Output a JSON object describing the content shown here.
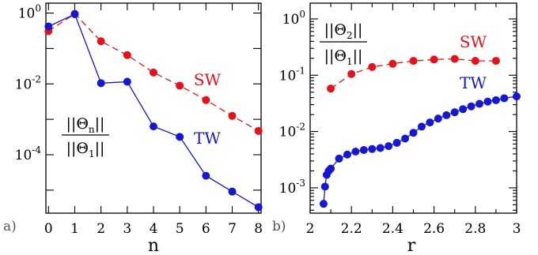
{
  "colors": {
    "sw": "#e8111a",
    "tw": "#1418d4"
  },
  "chart_data": [
    {
      "type": "line",
      "panel_label": "a)",
      "xlabel": "n",
      "ylabel_num": {
        "main": "||Θ",
        "sub": "n",
        "end": "||"
      },
      "ylabel_den": {
        "main": "||Θ",
        "sub": "1",
        "end": "||"
      },
      "x_ticks": [
        "0",
        "1",
        "2",
        "3",
        "4",
        "5",
        "6",
        "7",
        "8"
      ],
      "x_tick_values": [
        0,
        1,
        2,
        3,
        4,
        5,
        6,
        7,
        8
      ],
      "xlim": [
        -0.1,
        8.1
      ],
      "y_log": true,
      "ylim_log10": [
        -5.65,
        0.28
      ],
      "y_tick_labels": [
        {
          "exp": 0,
          "base": "10",
          "sup": "0"
        },
        {
          "exp": -2,
          "base": "10",
          "sup": "-2"
        },
        {
          "exp": -4,
          "base": "10",
          "sup": "-4"
        }
      ],
      "y_minor_exps": [
        -1,
        -3,
        -5
      ],
      "series": [
        {
          "name": "SW",
          "style": "dashed",
          "color": "sw",
          "x": [
            0,
            1,
            2,
            3,
            4,
            5,
            6,
            7,
            8
          ],
          "y": [
            0.31,
            0.95,
            0.16,
            0.065,
            0.021,
            0.0089,
            0.0035,
            0.00125,
            0.00047
          ]
        },
        {
          "name": "TW",
          "style": "solid",
          "color": "tw",
          "x": [
            0,
            1,
            2,
            3,
            4,
            5,
            6,
            7,
            8
          ],
          "y": [
            0.42,
            0.93,
            0.0105,
            0.0115,
            0.00063,
            0.00032,
            2.55e-05,
            9.1e-06,
            3.3e-06
          ]
        }
      ]
    },
    {
      "type": "line",
      "panel_label": "b)",
      "xlabel": "r",
      "ylabel_num": {
        "main": "||Θ",
        "sub": "2",
        "end": "||"
      },
      "ylabel_den": {
        "main": "||Θ",
        "sub": "1",
        "end": "||"
      },
      "x_ticks": [
        "2",
        "2.2",
        "2.4",
        "2.6",
        "2.8",
        "3"
      ],
      "x_tick_values": [
        2.0,
        2.2,
        2.4,
        2.6,
        2.8,
        3.0
      ],
      "xlim": [
        2.0,
        3.0
      ],
      "y_log": true,
      "ylim_log10": [
        -3.45,
        0.28
      ],
      "y_tick_labels": [
        {
          "exp": 0,
          "base": "10",
          "sup": "0"
        },
        {
          "exp": -1,
          "base": "10",
          "sup": "-1"
        },
        {
          "exp": -2,
          "base": "10",
          "sup": "-2"
        },
        {
          "exp": -3,
          "base": "10",
          "sup": "-3"
        }
      ],
      "y_minor_exps": [],
      "series": [
        {
          "name": "SW",
          "style": "dashed",
          "color": "sw",
          "x": [
            2.1,
            2.2,
            2.3,
            2.4,
            2.5,
            2.6,
            2.7,
            2.8,
            2.9
          ],
          "y": [
            0.058,
            0.105,
            0.14,
            0.16,
            0.18,
            0.19,
            0.195,
            0.18,
            0.18
          ]
        },
        {
          "name": "TW",
          "style": "solid",
          "color": "tw",
          "x": [
            2.065,
            2.072,
            2.08,
            2.09,
            2.1,
            2.14,
            2.18,
            2.22,
            2.26,
            2.3,
            2.34,
            2.38,
            2.42,
            2.46,
            2.5,
            2.54,
            2.58,
            2.62,
            2.66,
            2.7,
            2.74,
            2.78,
            2.82,
            2.86,
            2.9,
            2.94,
            3.0
          ],
          "y": [
            0.00052,
            0.00105,
            0.0017,
            0.002,
            0.0022,
            0.0033,
            0.0039,
            0.0044,
            0.0047,
            0.0049,
            0.0051,
            0.0055,
            0.0063,
            0.0075,
            0.0095,
            0.0122,
            0.0145,
            0.017,
            0.0195,
            0.022,
            0.025,
            0.028,
            0.031,
            0.034,
            0.036,
            0.039,
            0.042
          ]
        }
      ]
    }
  ]
}
